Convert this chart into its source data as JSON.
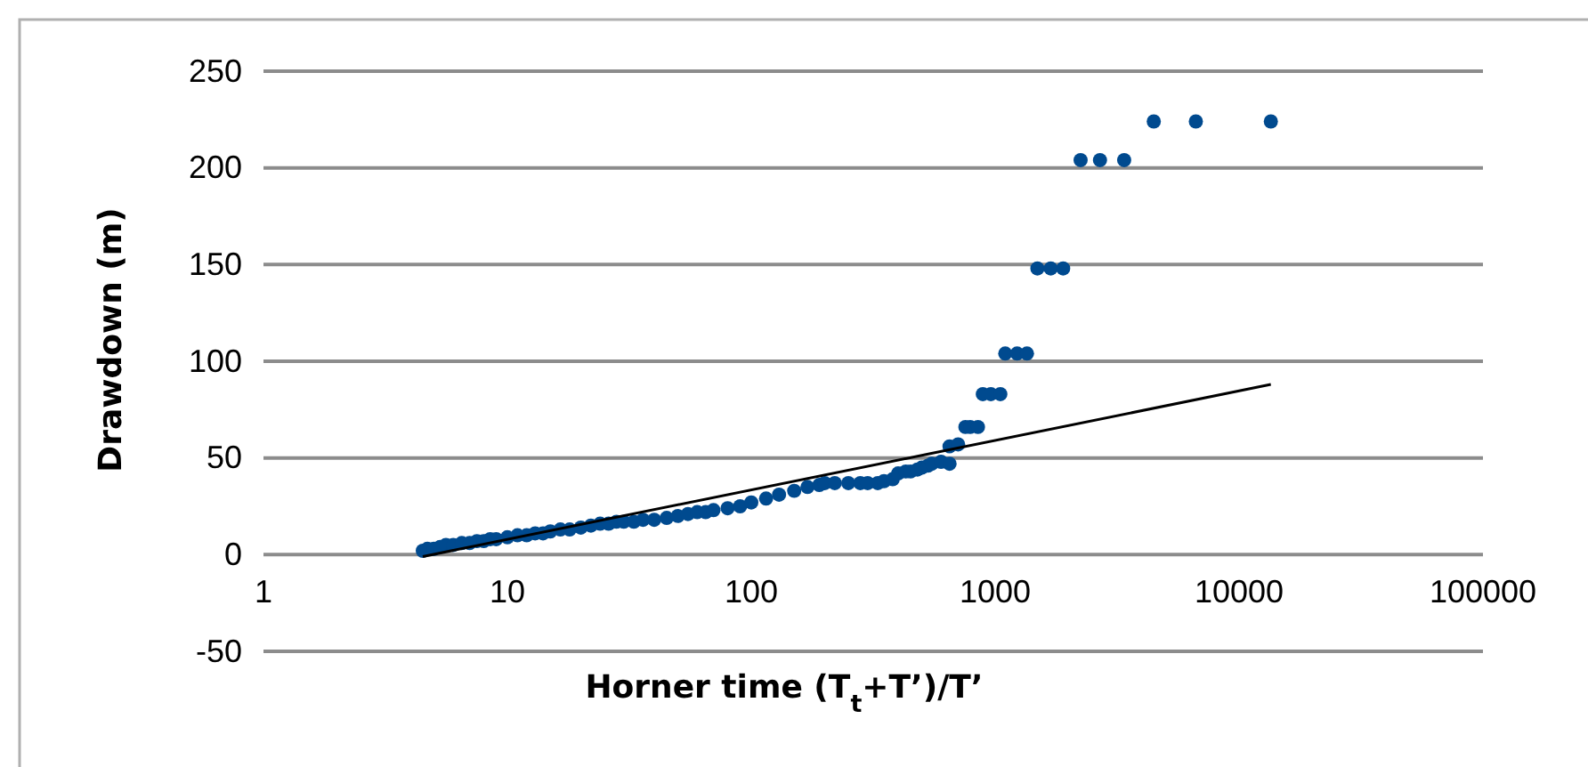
{
  "chart_data": {
    "type": "scatter",
    "xlabel": "Horner time (T$_{t}$+T’)/T’",
    "ylabel": "Drawdown (m)",
    "log": "x",
    "xlim": [
      1,
      100000
    ],
    "xticks": [
      1,
      10,
      100,
      1000,
      10000,
      100000
    ],
    "ylim": [
      -50,
      250
    ],
    "yticks": [
      -50,
      0,
      50,
      100,
      150,
      200,
      250
    ],
    "grid": "y",
    "series": [
      {
        "color": "#004a8f",
        "marker": "circle",
        "x": [
          4.5,
          4.7,
          5,
          5.3,
          5.6,
          6,
          6.5,
          7,
          7.5,
          8,
          8.5,
          9,
          10,
          11,
          12,
          13,
          14,
          15,
          16.5,
          18,
          20,
          22,
          24,
          26,
          28,
          30,
          33,
          36,
          40,
          45,
          50,
          55,
          60,
          65,
          70,
          80,
          90,
          100,
          115,
          130,
          150,
          170,
          190,
          200,
          220,
          250,
          280,
          300,
          330,
          350,
          380,
          400,
          430,
          450,
          480,
          500,
          530,
          550,
          600,
          650,
          650,
          705,
          755,
          790,
          850,
          890,
          960,
          1050,
          1100,
          1230,
          1350,
          1490,
          1690,
          1900,
          2240,
          2690,
          3380,
          4470,
          6650,
          13500
        ],
        "values": [
          2,
          3,
          3,
          4,
          5,
          5,
          6,
          6,
          7,
          7,
          8,
          8,
          9,
          10,
          10,
          11,
          11,
          12,
          13,
          13,
          14,
          15,
          16,
          16,
          17,
          17,
          17,
          18,
          18,
          19,
          20,
          21,
          22,
          22,
          23,
          24,
          25,
          27,
          29,
          31,
          33,
          35,
          36,
          37,
          37,
          37,
          37,
          37,
          37,
          38,
          39,
          42,
          43,
          43,
          44,
          45,
          46,
          47,
          48,
          47,
          56,
          57,
          66,
          66,
          66,
          83,
          83,
          83,
          104,
          104,
          104,
          148,
          148,
          148,
          204,
          204,
          204,
          224,
          224,
          224
        ]
      },
      {
        "type": "line",
        "color": "#000000",
        "x": [
          4.5,
          13500
        ],
        "values": [
          -1,
          88
        ]
      }
    ]
  }
}
